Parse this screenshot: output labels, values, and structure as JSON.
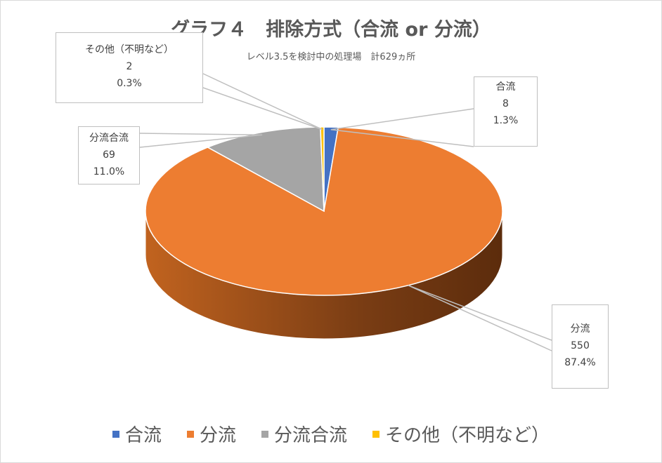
{
  "chart_data": {
    "type": "pie",
    "title": "グラフ４　排除方式（合流 or 分流）",
    "subtitle": "レベル3.5を検討中の処理場　計629ヵ所",
    "slices": [
      {
        "label": "合流",
        "value": 8,
        "percent": "1.3%",
        "color": "#4472c4"
      },
      {
        "label": "分流",
        "value": 550,
        "percent": "87.4%",
        "color": "#ed7d31"
      },
      {
        "label": "分流合流",
        "value": 69,
        "percent": "11.0%",
        "color": "#a5a5a5"
      },
      {
        "label": "その他（不明など）",
        "value": 2,
        "percent": "0.3%",
        "color": "#ffc000"
      }
    ],
    "legend": {
      "position": "bottom"
    },
    "style": "3d"
  }
}
